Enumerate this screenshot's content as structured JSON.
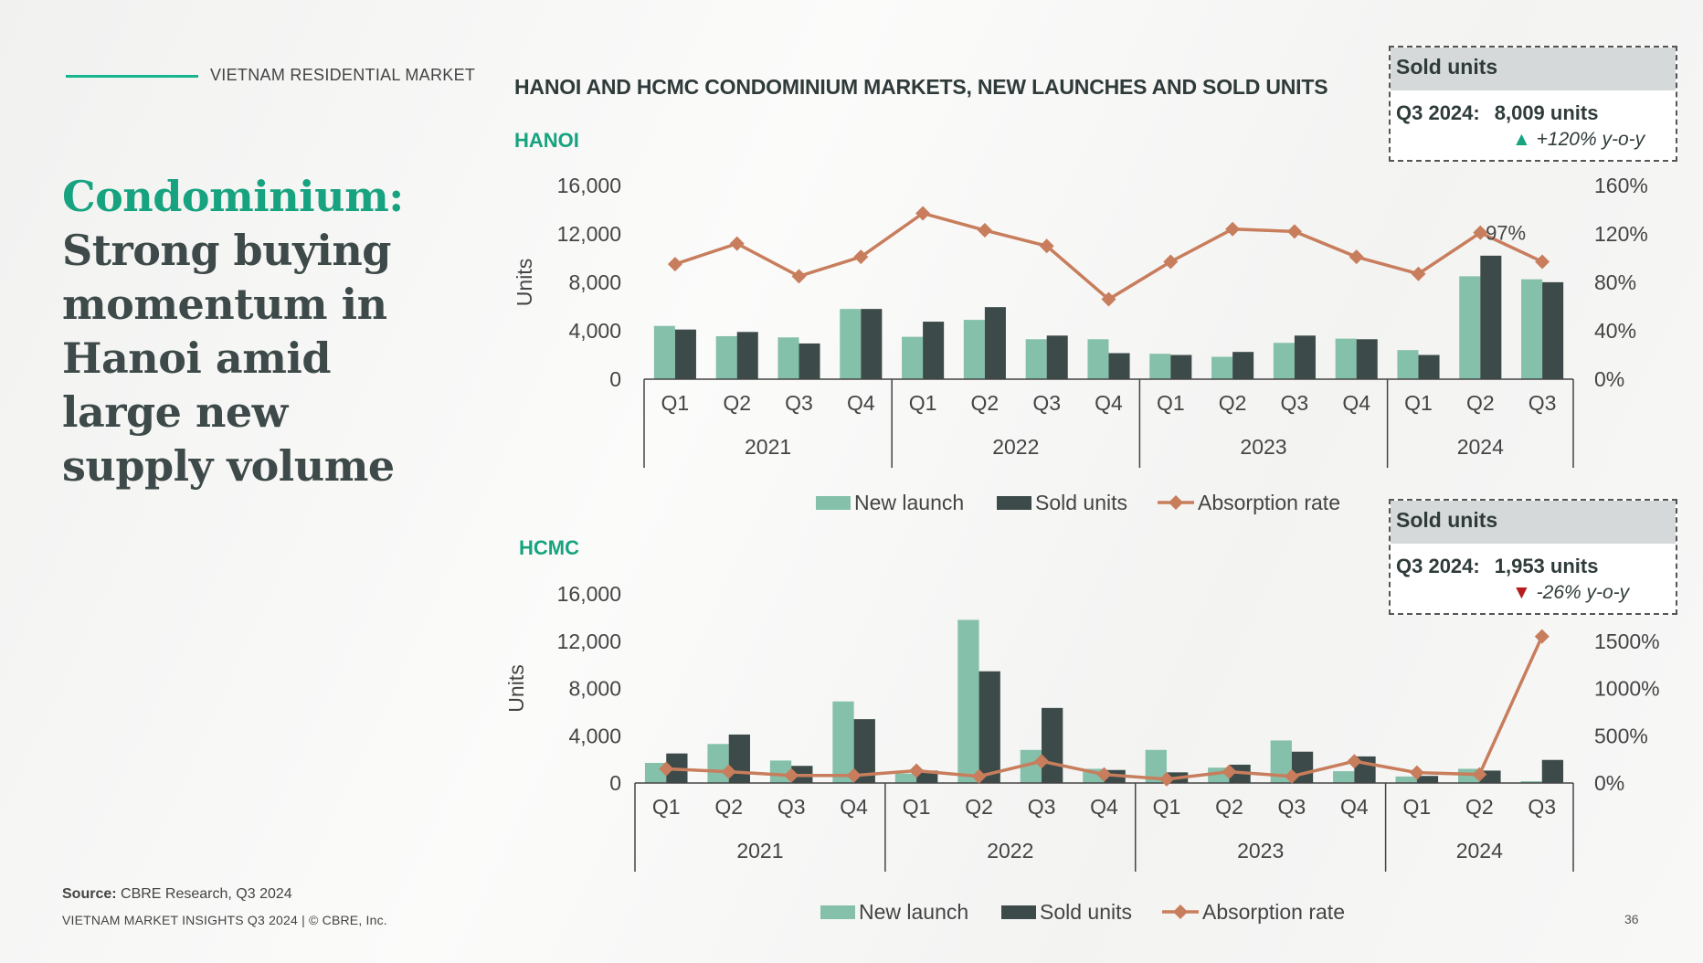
{
  "header": {
    "kicker": "VIETNAM RESIDENTIAL MARKET"
  },
  "headline": {
    "accent": "Condominium:",
    "rest": "Strong buying momentum in Hanoi amid large new supply volume"
  },
  "chart_title": "HANOI AND HCMC CONDOMINIUM MARKETS, NEW LAUNCHES AND SOLD UNITS",
  "source": {
    "label": "Source:",
    "text": " CBRE Research, Q3 2024"
  },
  "footer": {
    "text": "VIETNAM MARKET INSIGHTS Q3 2024 | © CBRE, Inc."
  },
  "page_number": "36",
  "colors": {
    "new_launch": "#84c0aa",
    "sold_units": "#3c4b49",
    "absorption": "#c87d5c",
    "accent": "#17a37f"
  },
  "callouts": {
    "hanoi": {
      "head": "Sold units",
      "period": "Q3 2024:",
      "value": "8,009 units",
      "arrow": "▲",
      "change": "+120% y-o-y"
    },
    "hcmc": {
      "head": "Sold units",
      "period": "Q3 2024:",
      "value": "1,953 units",
      "arrow": "▼",
      "change": "-26% y-o-y"
    }
  },
  "chart_data": [
    {
      "type": "bar",
      "panel": "HANOI",
      "ylabel": "Units",
      "ylim": [
        0,
        16000
      ],
      "yticks": [
        "0",
        "4,000",
        "8,000",
        "12,000",
        "16,000"
      ],
      "y2lim": [
        0,
        1.6
      ],
      "y2ticks": [
        "0%",
        "40%",
        "80%",
        "120%",
        "160%"
      ],
      "categories": [
        "Q1",
        "Q2",
        "Q3",
        "Q4",
        "Q1",
        "Q2",
        "Q3",
        "Q4",
        "Q1",
        "Q2",
        "Q3",
        "Q4",
        "Q1",
        "Q2",
        "Q3"
      ],
      "years": [
        {
          "label": "2021",
          "count": 4
        },
        {
          "label": "2022",
          "count": 4
        },
        {
          "label": "2023",
          "count": 4
        },
        {
          "label": "2024",
          "count": 3
        }
      ],
      "series": [
        {
          "name": "New launch",
          "type": "bar",
          "values": [
            4400,
            3550,
            3450,
            5800,
            3500,
            4900,
            3300,
            3300,
            2100,
            1850,
            3000,
            3350,
            2400,
            8500,
            8250
          ]
        },
        {
          "name": "Sold units",
          "type": "bar",
          "values": [
            4100,
            3900,
            2950,
            5800,
            4750,
            5950,
            3600,
            2150,
            2000,
            2250,
            3600,
            3300,
            2000,
            10200,
            8009
          ]
        },
        {
          "name": "Absorption rate",
          "type": "line",
          "axis": "y2",
          "values": [
            0.95,
            1.12,
            0.85,
            1.01,
            1.37,
            1.23,
            1.1,
            0.66,
            0.97,
            1.24,
            1.22,
            1.01,
            0.87,
            1.21,
            0.97
          ]
        }
      ],
      "data_labels": [
        {
          "index": 14,
          "text": "97%"
        }
      ],
      "legend": "bottom"
    },
    {
      "type": "bar",
      "panel": "HCMC",
      "ylabel": "Units",
      "ylim": [
        0,
        16000
      ],
      "yticks": [
        "0",
        "4,000",
        "8,000",
        "12,000",
        "16,000"
      ],
      "y2lim": [
        0,
        20
      ],
      "y2ticks": [
        "0%",
        "500%",
        "1000%",
        "1500%"
      ],
      "y2tick_values": [
        0,
        5,
        10,
        15
      ],
      "categories": [
        "Q1",
        "Q2",
        "Q3",
        "Q4",
        "Q1",
        "Q2",
        "Q3",
        "Q4",
        "Q1",
        "Q2",
        "Q3",
        "Q4",
        "Q1",
        "Q2",
        "Q3"
      ],
      "years": [
        {
          "label": "2021",
          "count": 4
        },
        {
          "label": "2022",
          "count": 4
        },
        {
          "label": "2023",
          "count": 4
        },
        {
          "label": "2024",
          "count": 3
        }
      ],
      "series": [
        {
          "name": "New launch",
          "type": "bar",
          "values": [
            1700,
            3300,
            1900,
            6900,
            800,
            13800,
            2800,
            1200,
            2800,
            1300,
            3600,
            1000,
            550,
            1200,
            150
          ]
        },
        {
          "name": "Sold units",
          "type": "bar",
          "values": [
            2500,
            4100,
            1450,
            5400,
            1050,
            9450,
            6350,
            1100,
            900,
            1550,
            2650,
            2250,
            600,
            1050,
            1953
          ]
        },
        {
          "name": "Absorption rate",
          "type": "line",
          "axis": "y2",
          "values": [
            1.5,
            1.2,
            0.8,
            0.8,
            1.3,
            0.7,
            2.3,
            0.9,
            0.4,
            1.2,
            0.7,
            2.3,
            1.1,
            0.9,
            15.5
          ]
        }
      ],
      "legend": "bottom"
    }
  ]
}
